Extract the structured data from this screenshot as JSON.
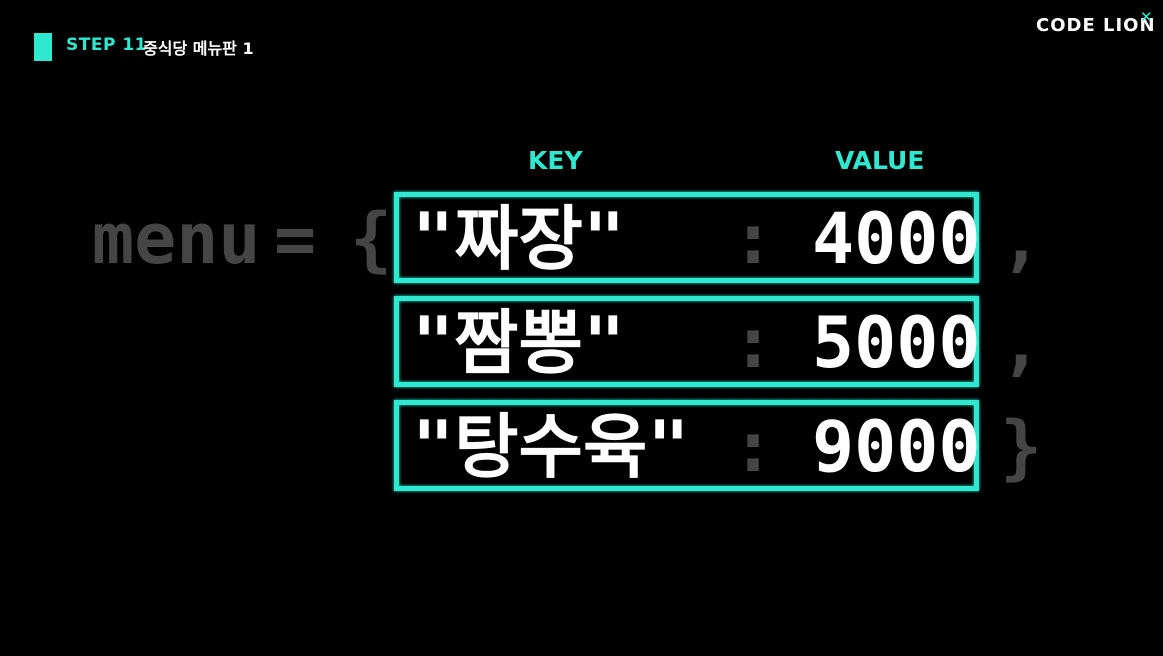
{
  "header": {
    "step_label": "STEP 11",
    "step_title": "중식당 메뉴판 1"
  },
  "brand": {
    "logo_text": "CODE LION"
  },
  "columns": {
    "key_label": "KEY",
    "value_label": "VALUE"
  },
  "code": {
    "variable": "menu",
    "equals": "=",
    "open_brace": "{",
    "close_brace": "}",
    "separator": ":",
    "comma": ",",
    "entries": [
      {
        "key": "\"짜장\"",
        "value": "4000"
      },
      {
        "key": "\"짬뽕\"",
        "value": "5000"
      },
      {
        "key": "\"탕수육\"",
        "value": "9000"
      }
    ]
  },
  "colors": {
    "accent": "#2ee8cf",
    "background": "#000000",
    "dim_text": "#454545",
    "bright_text": "#ffffff"
  }
}
